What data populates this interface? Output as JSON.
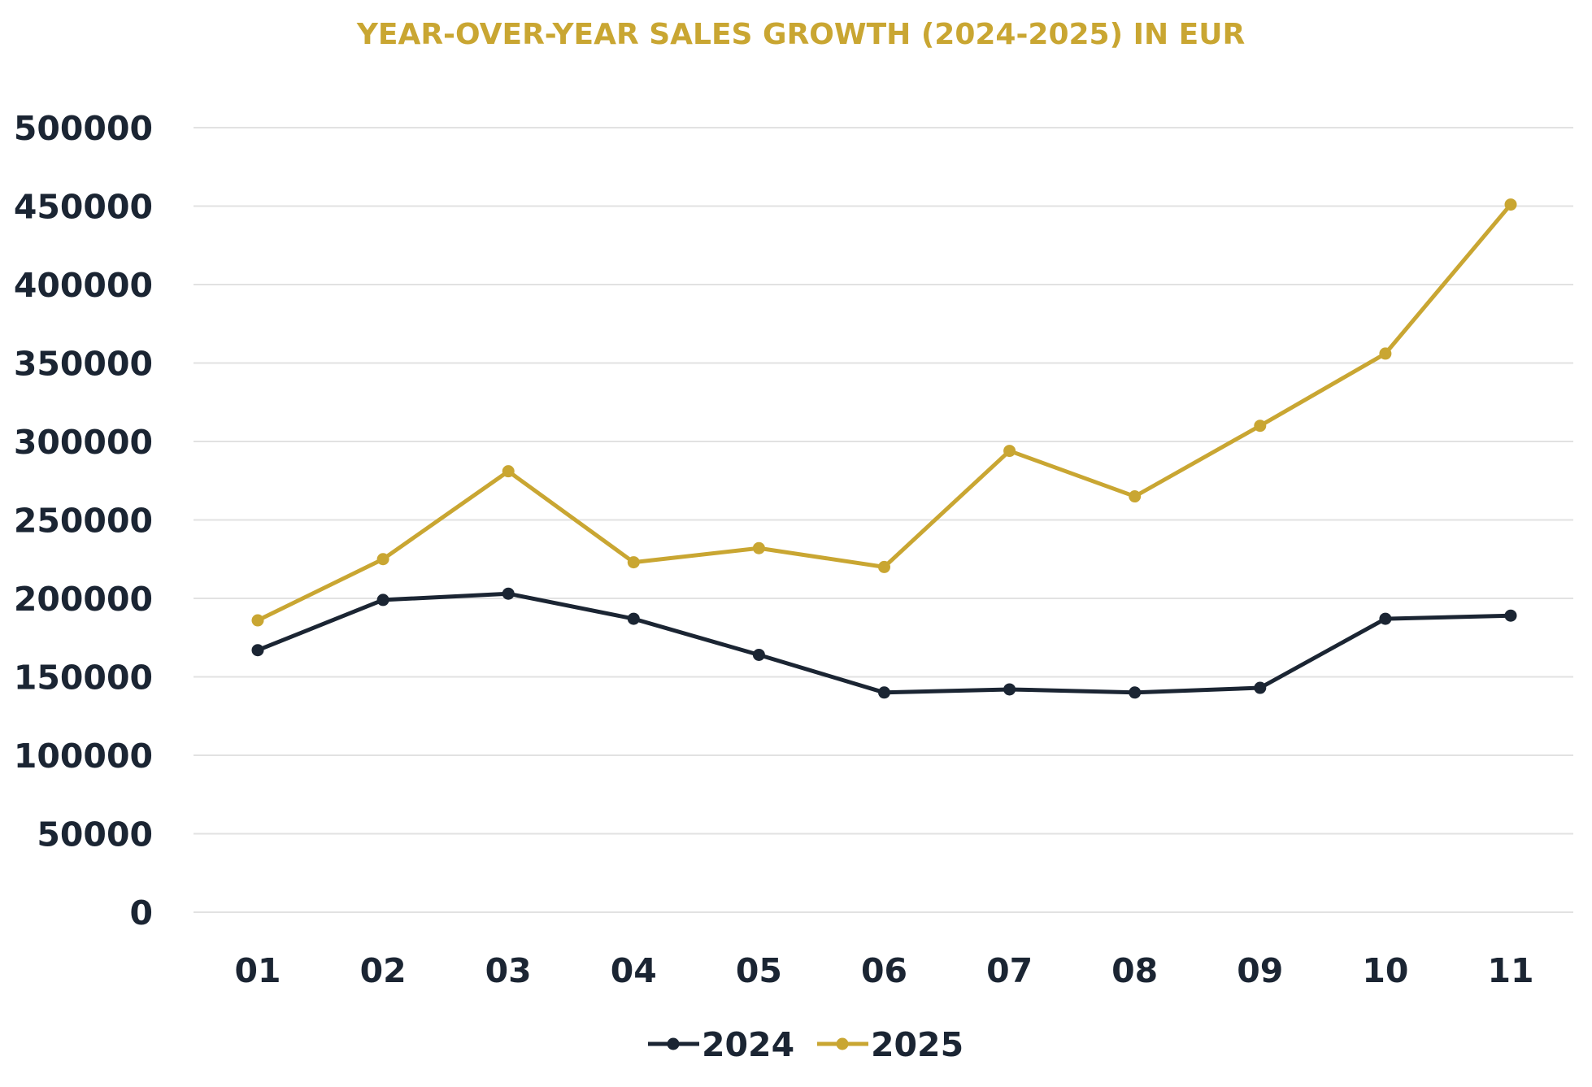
{
  "chart_data": {
    "type": "line",
    "title": "YEAR-OVER-YEAR SALES GROWTH (2024-2025) IN EUR",
    "xlabel": "",
    "ylabel": "",
    "categories": [
      "01",
      "02",
      "03",
      "04",
      "05",
      "06",
      "07",
      "08",
      "09",
      "10",
      "11"
    ],
    "ylim": [
      0,
      500000
    ],
    "yticks": [
      "0",
      "50000",
      "100000",
      "150000",
      "200000",
      "250000",
      "300000",
      "350000",
      "400000",
      "450000",
      "500000"
    ],
    "grid": true,
    "legend_position": "bottom",
    "series": [
      {
        "name": "2024",
        "color": "#1b2533",
        "values": [
          167000,
          199000,
          203000,
          187000,
          164000,
          140000,
          142000,
          140000,
          143000,
          187000,
          189000
        ]
      },
      {
        "name": "2025",
        "color": "#c9a632",
        "values": [
          186000,
          225000,
          281000,
          223000,
          232000,
          220000,
          294000,
          265000,
          310000,
          356000,
          451000
        ]
      }
    ]
  }
}
